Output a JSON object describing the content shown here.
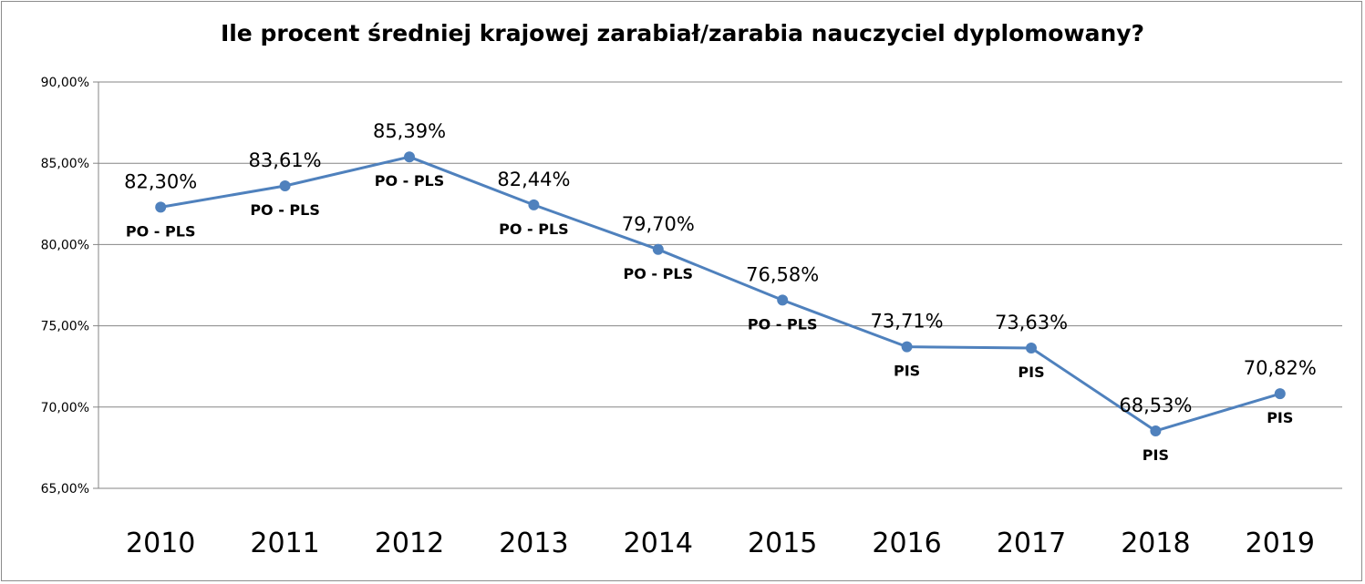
{
  "chart_data": {
    "type": "line",
    "title": "Ile procent średniej krajowej zarabiał/zarabia nauczyciel dyplomowany?",
    "xlabel": "",
    "ylabel": "",
    "ylim": [
      65,
      90
    ],
    "yticks": [
      "65,00%",
      "70,00%",
      "75,00%",
      "80,00%",
      "85,00%",
      "90,00%"
    ],
    "grid": true,
    "legend": "none",
    "line_color": "#4f81bd",
    "categories": [
      "2010",
      "2011",
      "2012",
      "2013",
      "2014",
      "2015",
      "2016",
      "2017",
      "2018",
      "2019"
    ],
    "series": [
      {
        "values": [
          82.3,
          83.61,
          85.39,
          82.44,
          79.7,
          76.58,
          73.71,
          73.63,
          68.53,
          70.82
        ],
        "value_labels": [
          "82,30%",
          "83,61%",
          "85,39%",
          "82,44%",
          "79,70%",
          "76,58%",
          "73,71%",
          "73,63%",
          "68,53%",
          "70,82%"
        ],
        "annotations": [
          "PO - PLS",
          "PO - PLS",
          "PO - PLS",
          "PO - PLS",
          "PO - PLS",
          "PO - PLS",
          "PIS",
          "PIS",
          "PIS",
          "PIS"
        ]
      }
    ]
  }
}
